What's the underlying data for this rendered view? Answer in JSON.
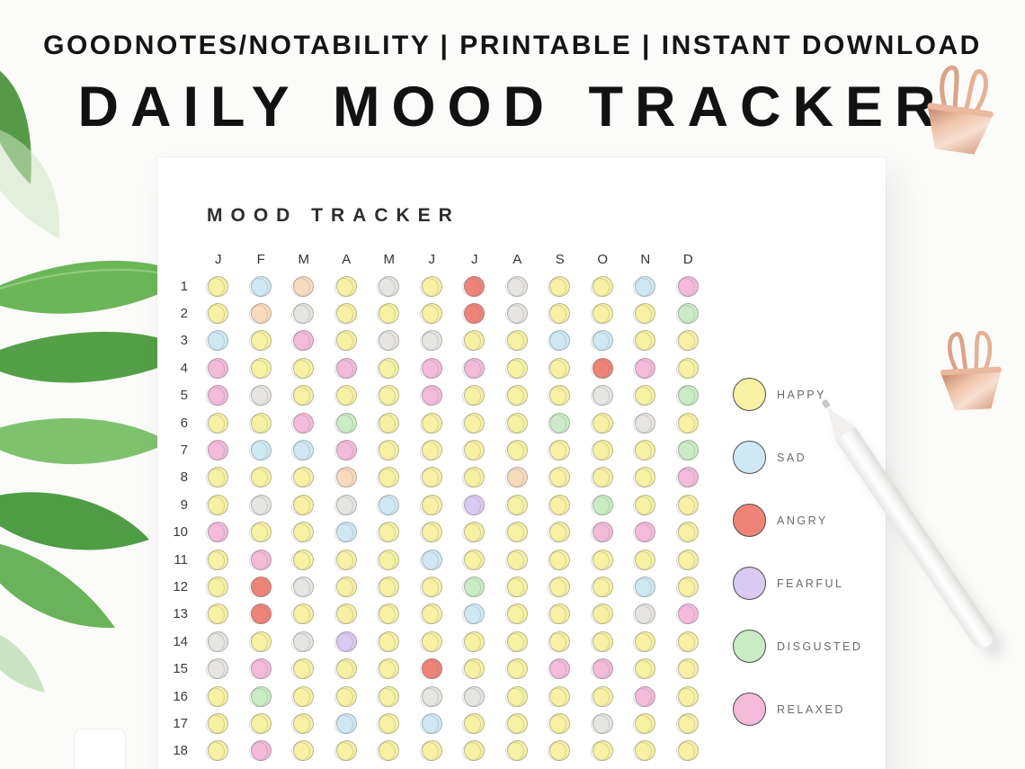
{
  "header": {
    "tagline": "GOODNOTES/NOTABILITY | PRINTABLE | INSTANT DOWNLOAD",
    "title": "DAILY MOOD TRACKER"
  },
  "tracker": {
    "title": "MOOD TRACKER",
    "months": [
      "J",
      "F",
      "M",
      "A",
      "M",
      "J",
      "J",
      "A",
      "S",
      "O",
      "N",
      "D"
    ],
    "day_numbers": [
      1,
      2,
      3,
      4,
      5,
      6,
      7,
      8,
      9,
      10,
      11,
      12,
      13,
      14,
      15,
      16,
      17,
      18
    ],
    "mood_colors": {
      "H": "#f6f1a3",
      "S": "#cfe9f4",
      "A": "#ee8478",
      "F": "#dac9f1",
      "D": "#c9ecc4",
      "R": "#f3bada",
      "P": "#f8dabd",
      "G": "#e6e5e2"
    },
    "grid": [
      "HSPHGHAGHHSR",
      "HPGHHHAGHHHD",
      "SHRHGGHHSSHH",
      "RHHRHRRHHARH",
      "RGHHHRHHHGHD",
      "HHRDHHHHDHGH",
      "RSSRHHHHHHHD",
      "HHHPHHHPHHHR",
      "HGHGSHFHHDHH",
      "RHHSHHHHHRRH",
      "HRHHHSHHHHHH",
      "HAGHHHDHHHSH",
      "HAHHHHSHHHGR",
      "GHGFHHHHHHHH",
      "GRHHHAHHRRHH",
      "HDHHHGGHHHRH",
      "HHHSHSHHHGHH",
      "HRHHHHHHHHHH"
    ],
    "legend": [
      {
        "label": "HAPPY",
        "color": "#f6f1a3"
      },
      {
        "label": "SAD",
        "color": "#cfe9f4"
      },
      {
        "label": "ANGRY",
        "color": "#ee8478"
      },
      {
        "label": "FEARFUL",
        "color": "#dac9f1"
      },
      {
        "label": "DISGUSTED",
        "color": "#c9ecc4"
      },
      {
        "label": "RELAXED",
        "color": "#f3bada"
      }
    ]
  },
  "decor": {
    "items": [
      "green-leaves",
      "rose-gold-binder-clip",
      "rose-gold-binder-clip",
      "white-stylus-pencil"
    ],
    "colors": {
      "rose_gold": "#daa284",
      "leaf_green": "#5fa84f",
      "pencil": "#f2f1ef"
    }
  }
}
